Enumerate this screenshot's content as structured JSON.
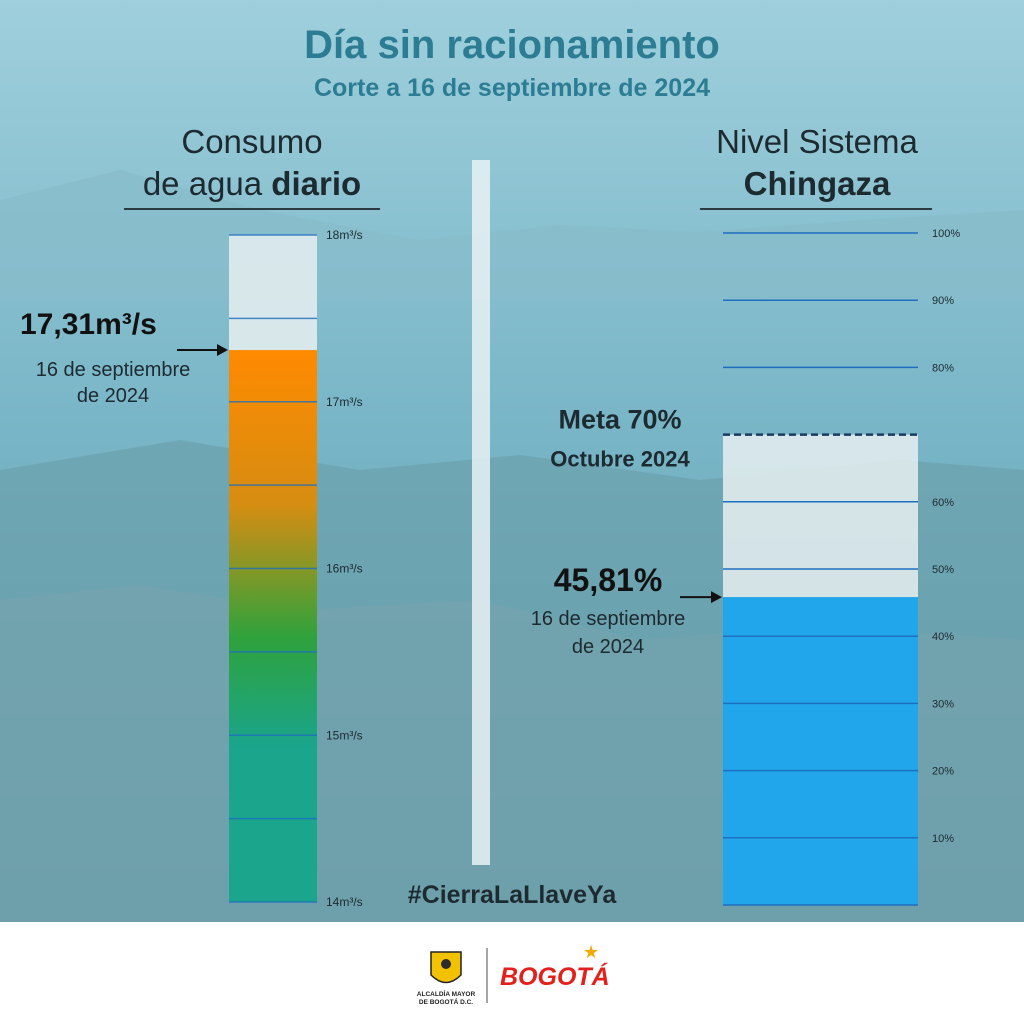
{
  "title": "Día sin racionamiento",
  "subtitle": "Corte a 16 de septiembre de 2024",
  "hashtag": "#CierraLaLlaveYa",
  "colors": {
    "teal_text": "#2c7d93",
    "dark_text": "#1d2a30",
    "consumption_top": "#ff8a00",
    "consumption_mid": "#2fa23c",
    "consumption_bottom": "#1aa58c",
    "level_fill": "#21a6ec",
    "gridline": "#1e6fc0",
    "background_water": "#6fb2c4"
  },
  "footer": {
    "org_line1": "ALCALDÍA MAYOR",
    "org_line2": "DE BOGOTÁ D.C.",
    "brand": "BOGOTÁ"
  },
  "chart_data": [
    {
      "type": "bar",
      "title_line1": "Consumo",
      "title_line2_regular": "de agua ",
      "title_line2_bold": "diario",
      "unit": "m³/s",
      "ylim": [
        14,
        18
      ],
      "ticks": [
        14,
        15,
        16,
        17,
        18
      ],
      "tick_labels": [
        "14m³/s",
        "15m³/s",
        "16m³/s",
        "17m³/s",
        "18m³/s"
      ],
      "value": 17.31,
      "value_label": "17,31m³/s",
      "date_label_line1": "16 de septiembre",
      "date_label_line2": "de 2024"
    },
    {
      "type": "bar",
      "title_line1": "Nivel Sistema",
      "title_line2_bold": "Chingaza",
      "unit": "%",
      "ylim": [
        0,
        100
      ],
      "ticks": [
        10,
        20,
        30,
        40,
        50,
        60,
        70,
        80,
        90,
        100
      ],
      "tick_labels": [
        "10%",
        "20%",
        "30%",
        "40%",
        "50%",
        "60%",
        "",
        "80%",
        "90%",
        "100%"
      ],
      "value": 45.81,
      "value_label": "45,81%",
      "date_label_line1": "16 de septiembre",
      "date_label_line2": "de 2024",
      "target": 70,
      "target_label_line1": "Meta 70%",
      "target_label_line2": "Octubre 2024"
    }
  ]
}
